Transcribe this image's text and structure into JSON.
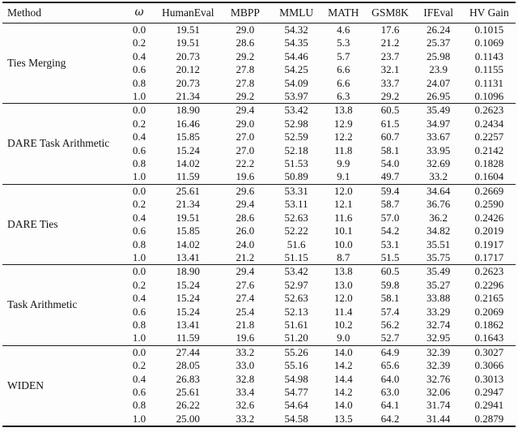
{
  "page": {
    "background_color": "#fdfdfd",
    "text_color": "#141414",
    "rule_color": "#1c1c1c"
  },
  "table": {
    "columns": [
      "Method",
      "ω",
      "HumanEval",
      "MBPP",
      "MMLU",
      "MATH",
      "GSM8K",
      "IFEval",
      "HV Gain"
    ],
    "groups": [
      {
        "method": "Ties Merging",
        "rows": [
          [
            "0.0",
            "19.51",
            "29.0",
            "54.32",
            "4.6",
            "17.6",
            "26.24",
            "0.1015"
          ],
          [
            "0.2",
            "19.51",
            "28.6",
            "54.35",
            "5.3",
            "21.2",
            "25.37",
            "0.1069"
          ],
          [
            "0.4",
            "20.73",
            "29.2",
            "54.46",
            "5.7",
            "23.7",
            "25.98",
            "0.1143"
          ],
          [
            "0.6",
            "20.12",
            "27.8",
            "54.25",
            "6.6",
            "32.1",
            "23.9",
            "0.1155"
          ],
          [
            "0.8",
            "20.73",
            "27.8",
            "54.09",
            "6.6",
            "33.7",
            "24.07",
            "0.1131"
          ],
          [
            "1.0",
            "21.34",
            "29.2",
            "53.97",
            "6.3",
            "29.2",
            "26.95",
            "0.1096"
          ]
        ]
      },
      {
        "method": "DARE Task Arithmetic",
        "rows": [
          [
            "0.0",
            "18.90",
            "29.4",
            "53.42",
            "13.8",
            "60.5",
            "35.49",
            "0.2623"
          ],
          [
            "0.2",
            "16.46",
            "29.0",
            "52.98",
            "12.9",
            "61.5",
            "34.97",
            "0.2434"
          ],
          [
            "0.4",
            "15.85",
            "27.0",
            "52.59",
            "12.2",
            "60.7",
            "33.67",
            "0.2257"
          ],
          [
            "0.6",
            "15.24",
            "27.0",
            "52.18",
            "11.8",
            "58.1",
            "33.95",
            "0.2142"
          ],
          [
            "0.8",
            "14.02",
            "22.2",
            "51.53",
            "9.9",
            "54.0",
            "32.69",
            "0.1828"
          ],
          [
            "1.0",
            "11.59",
            "19.6",
            "50.89",
            "9.1",
            "49.7",
            "33.2",
            "0.1604"
          ]
        ]
      },
      {
        "method": "DARE Ties",
        "rows": [
          [
            "0.0",
            "25.61",
            "29.6",
            "53.31",
            "12.0",
            "59.4",
            "34.64",
            "0.2669"
          ],
          [
            "0.2",
            "21.34",
            "29.4",
            "53.11",
            "12.1",
            "58.7",
            "36.76",
            "0.2590"
          ],
          [
            "0.4",
            "19.51",
            "28.6",
            "52.63",
            "11.6",
            "57.0",
            "36.2",
            "0.2426"
          ],
          [
            "0.6",
            "15.85",
            "26.0",
            "52.22",
            "10.1",
            "54.2",
            "34.82",
            "0.2019"
          ],
          [
            "0.8",
            "14.02",
            "24.0",
            "51.6",
            "10.0",
            "53.1",
            "35.51",
            "0.1917"
          ],
          [
            "1.0",
            "13.41",
            "21.2",
            "51.15",
            "8.7",
            "51.5",
            "35.75",
            "0.1717"
          ]
        ]
      },
      {
        "method": "Task Arithmetic",
        "rows": [
          [
            "0.0",
            "18.90",
            "29.4",
            "53.42",
            "13.8",
            "60.5",
            "35.49",
            "0.2623"
          ],
          [
            "0.2",
            "15.24",
            "27.6",
            "52.97",
            "13.0",
            "59.8",
            "35.27",
            "0.2296"
          ],
          [
            "0.4",
            "15.24",
            "27.4",
            "52.63",
            "12.0",
            "58.1",
            "33.88",
            "0.2165"
          ],
          [
            "0.6",
            "15.24",
            "25.4",
            "52.13",
            "11.4",
            "57.4",
            "33.29",
            "0.2069"
          ],
          [
            "0.8",
            "13.41",
            "21.8",
            "51.61",
            "10.2",
            "56.2",
            "32.74",
            "0.1862"
          ],
          [
            "1.0",
            "11.59",
            "19.6",
            "51.20",
            "9.0",
            "52.7",
            "32.95",
            "0.1643"
          ]
        ]
      },
      {
        "method": "WIDEN",
        "rows": [
          [
            "0.0",
            "27.44",
            "33.2",
            "55.26",
            "14.0",
            "64.9",
            "32.39",
            "0.3027"
          ],
          [
            "0.2",
            "28.05",
            "33.0",
            "55.16",
            "14.2",
            "65.6",
            "32.39",
            "0.3066"
          ],
          [
            "0.4",
            "26.83",
            "32.8",
            "54.98",
            "14.4",
            "64.0",
            "32.76",
            "0.3013"
          ],
          [
            "0.6",
            "25.61",
            "33.4",
            "54.77",
            "14.2",
            "63.0",
            "32.06",
            "0.2947"
          ],
          [
            "0.8",
            "26.22",
            "32.6",
            "54.64",
            "14.0",
            "64.1",
            "31.74",
            "0.2941"
          ],
          [
            "1.0",
            "25.00",
            "33.2",
            "54.58",
            "13.5",
            "64.2",
            "31.44",
            "0.2879"
          ]
        ]
      }
    ]
  }
}
